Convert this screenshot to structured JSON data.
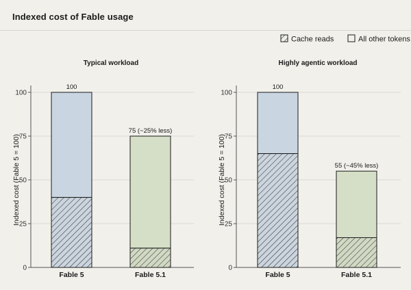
{
  "title": "Indexed cost of Fable usage",
  "legend": {
    "placement": "top-right",
    "items": [
      {
        "label": "Cache reads",
        "pattern": "hatched",
        "icon": "hatched-square"
      },
      {
        "label": "All other tokens",
        "pattern": "solid",
        "icon": "empty-square"
      }
    ]
  },
  "colors": {
    "fable5_fill": "#c9d6e2",
    "fable51_fill": "#d5dfc7",
    "fable5_hatch_bg": "#ccd5de",
    "fable51_hatch_bg": "#d2d9c3",
    "hatch_line": "#2b3138",
    "bar_stroke": "#1a1a1a",
    "grid": "#d9d8d3",
    "background": "#f1f0eb"
  },
  "chart_data": [
    {
      "type": "bar",
      "stacked": true,
      "title": "Typical workload",
      "ylabel": "Indexed cost (Fable 5 = 100)",
      "xlabel": "",
      "ylim": [
        0,
        110
      ],
      "yticks": [
        0,
        25,
        50,
        75,
        100
      ],
      "grid": true,
      "categories": [
        "Fable 5",
        "Fable 5.1"
      ],
      "series": [
        {
          "name": "Cache reads",
          "values": [
            40,
            11
          ]
        },
        {
          "name": "All other tokens",
          "values": [
            60,
            64
          ]
        }
      ],
      "totals": [
        100,
        75
      ],
      "data_labels": [
        "100",
        "75 (~25% less)"
      ]
    },
    {
      "type": "bar",
      "stacked": true,
      "title": "Highly agentic workload",
      "ylabel": "Indexed cost (Fable 5 = 100)",
      "xlabel": "",
      "ylim": [
        0,
        110
      ],
      "yticks": [
        0,
        25,
        50,
        75,
        100
      ],
      "grid": true,
      "categories": [
        "Fable 5",
        "Fable 5.1"
      ],
      "series": [
        {
          "name": "Cache reads",
          "values": [
            65,
            17
          ]
        },
        {
          "name": "All other tokens",
          "values": [
            35,
            38
          ]
        }
      ],
      "totals": [
        100,
        55
      ],
      "data_labels": [
        "100",
        "55 (~45% less)"
      ]
    }
  ]
}
